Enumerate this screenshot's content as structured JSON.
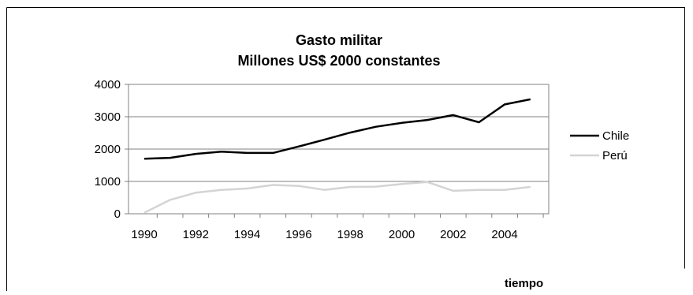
{
  "chart_data": {
    "type": "line",
    "title": "Gasto militar",
    "subtitle": "Millones US$ 2000 constantes",
    "xlabel": "tiempo",
    "ylabel": "",
    "x": [
      1990,
      1991,
      1992,
      1993,
      1994,
      1995,
      1996,
      1997,
      1998,
      1999,
      2000,
      2001,
      2002,
      2003,
      2004,
      2005
    ],
    "x_tick_labels": [
      "1990",
      "1992",
      "1994",
      "1996",
      "1998",
      "2000",
      "2002",
      "2004"
    ],
    "y_tick_labels": [
      "0",
      "1000",
      "2000",
      "3000",
      "4000"
    ],
    "ylim": [
      0,
      4000
    ],
    "grid": "horizontal",
    "legend_position": "right",
    "series": [
      {
        "name": "Chile",
        "color": "#000000",
        "values": [
          1700,
          1730,
          1850,
          1920,
          1880,
          1880,
          2080,
          2290,
          2510,
          2690,
          2810,
          2900,
          3050,
          2830,
          3380,
          3540
        ]
      },
      {
        "name": "Perú",
        "color": "#d4d4d4",
        "values": [
          30,
          430,
          650,
          740,
          780,
          890,
          860,
          740,
          830,
          840,
          920,
          980,
          710,
          740,
          740,
          830
        ]
      }
    ]
  }
}
